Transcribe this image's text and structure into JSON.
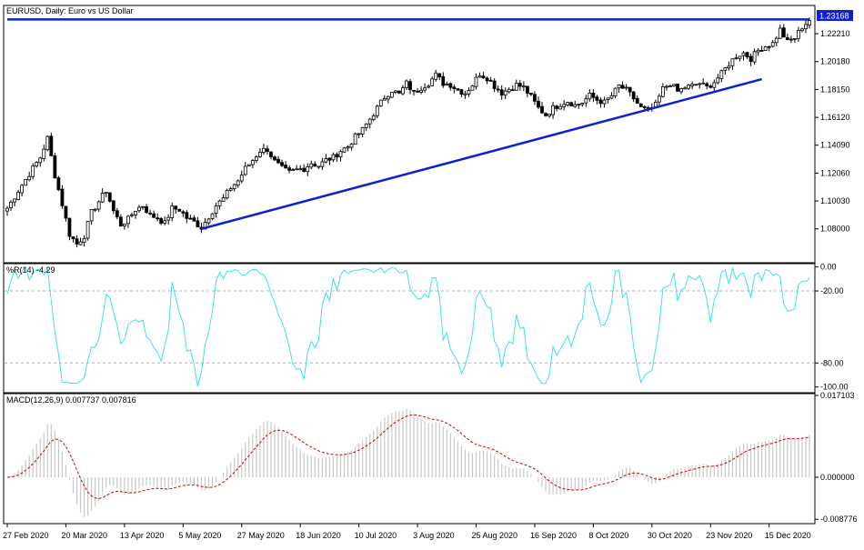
{
  "chart_data": [
    {
      "type": "candlestick",
      "title": "EURUSD, Daily:  Euro vs US Dollar",
      "current_price_label": "1.23168",
      "current_price": 1.23168,
      "ylim": [
        1.056,
        1.242
      ],
      "y_ticks": [
        "1.22210",
        "1.20180",
        "1.18150",
        "1.16120",
        "1.14090",
        "1.12060",
        "1.10030",
        "1.08000"
      ],
      "y_tick_values": [
        1.2221,
        1.2018,
        1.1815,
        1.1612,
        1.1409,
        1.1206,
        1.1003,
        1.08
      ],
      "x_ticks": [
        "27 Feb 2020",
        "20 Mar 2020",
        "13 Apr 2020",
        "5 May 2020",
        "27 May 2020",
        "18 Jun 2020",
        "10 Jul 2020",
        "3 Aug 2020",
        "25 Aug 2020",
        "16 Sep 2020",
        "8 Oct 2020",
        "30 Oct 2020",
        "23 Nov 2020",
        "15 Dec 2020"
      ],
      "x_tick_bar_index": [
        0,
        16,
        32,
        48,
        64,
        80,
        96,
        112,
        128,
        144,
        160,
        176,
        192,
        208
      ],
      "bar_count": 220,
      "close_anchors": [
        [
          0,
          1.095
        ],
        [
          4,
          1.112
        ],
        [
          7,
          1.124
        ],
        [
          9,
          1.132
        ],
        [
          11,
          1.146
        ],
        [
          13,
          1.119
        ],
        [
          15,
          1.098
        ],
        [
          17,
          1.076
        ],
        [
          19,
          1.069
        ],
        [
          21,
          1.075
        ],
        [
          23,
          1.092
        ],
        [
          25,
          1.1
        ],
        [
          27,
          1.108
        ],
        [
          29,
          1.093
        ],
        [
          31,
          1.083
        ],
        [
          33,
          1.087
        ],
        [
          35,
          1.094
        ],
        [
          37,
          1.097
        ],
        [
          39,
          1.09
        ],
        [
          41,
          1.088
        ],
        [
          43,
          1.084
        ],
        [
          45,
          1.095
        ],
        [
          47,
          1.094
        ],
        [
          49,
          1.088
        ],
        [
          51,
          1.085
        ],
        [
          53,
          1.081
        ],
        [
          55,
          1.089
        ],
        [
          57,
          1.097
        ],
        [
          59,
          1.102
        ],
        [
          61,
          1.11
        ],
        [
          63,
          1.115
        ],
        [
          65,
          1.124
        ],
        [
          67,
          1.13
        ],
        [
          69,
          1.137
        ],
        [
          71,
          1.138
        ],
        [
          73,
          1.129
        ],
        [
          75,
          1.124
        ],
        [
          77,
          1.121
        ],
        [
          79,
          1.123
        ],
        [
          81,
          1.124
        ],
        [
          83,
          1.128
        ],
        [
          85,
          1.126
        ],
        [
          87,
          1.13
        ],
        [
          89,
          1.132
        ],
        [
          91,
          1.137
        ],
        [
          93,
          1.14
        ],
        [
          95,
          1.147
        ],
        [
          97,
          1.152
        ],
        [
          99,
          1.16
        ],
        [
          101,
          1.168
        ],
        [
          103,
          1.176
        ],
        [
          105,
          1.181
        ],
        [
          107,
          1.178
        ],
        [
          109,
          1.186
        ],
        [
          111,
          1.179
        ],
        [
          113,
          1.183
        ],
        [
          115,
          1.186
        ],
        [
          117,
          1.192
        ],
        [
          119,
          1.186
        ],
        [
          121,
          1.185
        ],
        [
          123,
          1.181
        ],
        [
          125,
          1.179
        ],
        [
          127,
          1.185
        ],
        [
          129,
          1.193
        ],
        [
          131,
          1.19
        ],
        [
          133,
          1.184
        ],
        [
          135,
          1.179
        ],
        [
          137,
          1.182
        ],
        [
          139,
          1.185
        ],
        [
          141,
          1.183
        ],
        [
          143,
          1.176
        ],
        [
          145,
          1.168
        ],
        [
          147,
          1.163
        ],
        [
          149,
          1.168
        ],
        [
          151,
          1.171
        ],
        [
          153,
          1.173
        ],
        [
          155,
          1.17
        ],
        [
          157,
          1.172
        ],
        [
          159,
          1.177
        ],
        [
          161,
          1.174
        ],
        [
          163,
          1.172
        ],
        [
          165,
          1.177
        ],
        [
          167,
          1.184
        ],
        [
          169,
          1.181
        ],
        [
          171,
          1.175
        ],
        [
          173,
          1.168
        ],
        [
          175,
          1.166
        ],
        [
          177,
          1.17
        ],
        [
          179,
          1.182
        ],
        [
          181,
          1.186
        ],
        [
          183,
          1.18
        ],
        [
          185,
          1.183
        ],
        [
          187,
          1.184
        ],
        [
          189,
          1.186
        ],
        [
          191,
          1.183
        ],
        [
          193,
          1.187
        ],
        [
          195,
          1.193
        ],
        [
          197,
          1.2
        ],
        [
          199,
          1.206
        ],
        [
          201,
          1.208
        ],
        [
          203,
          1.204
        ],
        [
          205,
          1.21
        ],
        [
          207,
          1.213
        ],
        [
          209,
          1.215
        ],
        [
          211,
          1.225
        ],
        [
          213,
          1.216
        ],
        [
          215,
          1.219
        ],
        [
          217,
          1.227
        ],
        [
          219,
          1.232
        ]
      ],
      "trendlines": [
        {
          "from": [
            53,
            1.08
          ],
          "to": [
            206,
            1.189
          ]
        },
        {
          "from": [
            0,
            1.2325
          ],
          "to": [
            219,
            1.2325
          ]
        }
      ]
    },
    {
      "type": "line",
      "title": "%R(14) -4.29",
      "ylim": [
        -104,
        2
      ],
      "y_ticks": [
        "0.00",
        "-20.00",
        "-80.00",
        "-100.00"
      ],
      "y_tick_values": [
        0,
        -20,
        -80,
        -100
      ],
      "levels": [
        -20,
        -80
      ],
      "color": "#40E0E8"
    },
    {
      "type": "bar+line",
      "title": "MACD(12,26,9) 0.007737 0.007816",
      "ylim": [
        -0.0095,
        0.0173
      ],
      "y_ticks": [
        "0.017103",
        "0.000000",
        "-0.008776"
      ],
      "y_tick_values": [
        0.017103,
        0,
        -0.008776
      ],
      "bar_color": "#C8C8C8",
      "signal_color": "#D00000"
    }
  ]
}
